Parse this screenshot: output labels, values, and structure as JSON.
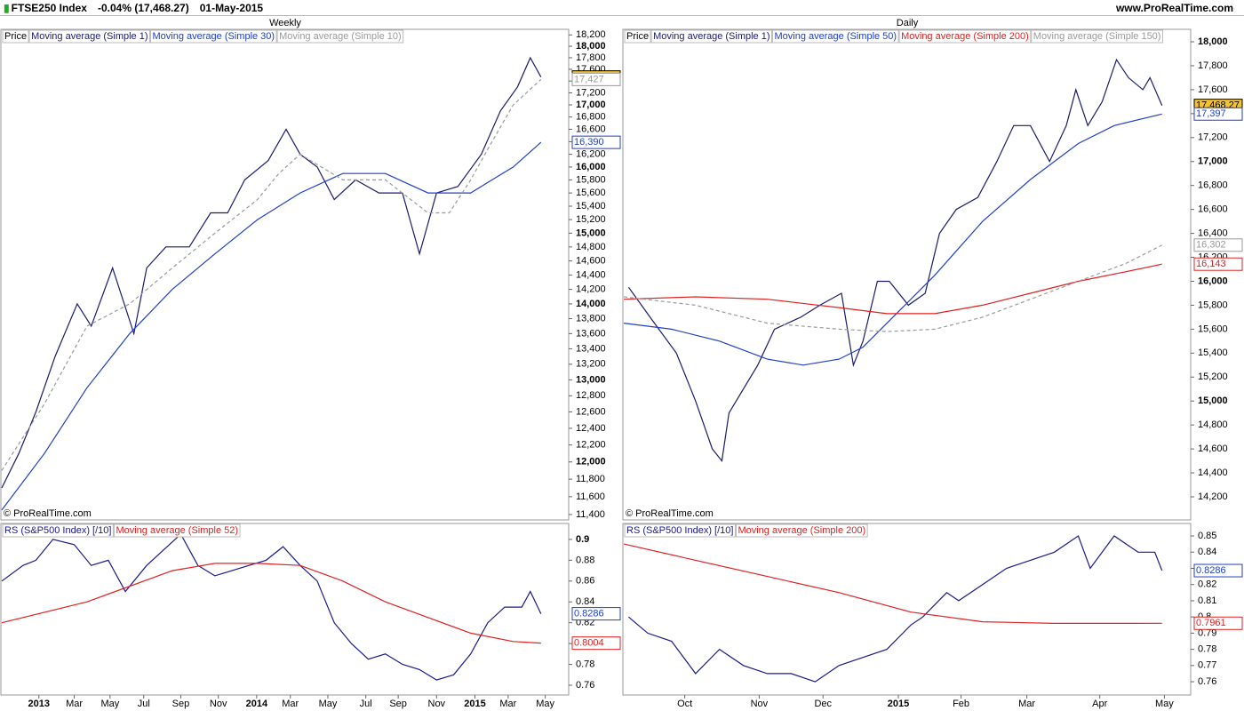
{
  "header": {
    "symbol": "FTSE250 Index",
    "change": "-0.04% (17,468.27)",
    "date": "01-May-2015",
    "site": "www.ProRealTime.com"
  },
  "chart_data": [
    {
      "type": "line",
      "title": "Weekly",
      "log": true,
      "price_label": "Price",
      "annotation": "© ProRealTime.com",
      "xlim": [
        0,
        133
      ],
      "ylim": [
        11340,
        18300
      ],
      "yticks": [
        {
          "value": 11400,
          "label": "11,400"
        },
        {
          "value": 11600,
          "label": "11,600"
        },
        {
          "value": 11800,
          "label": "11,800"
        },
        {
          "value": 12000,
          "label": "12,000"
        },
        {
          "value": 12200,
          "label": "12,200"
        },
        {
          "value": 12400,
          "label": "12,400"
        },
        {
          "value": 12600,
          "label": "12,600"
        },
        {
          "value": 12800,
          "label": "12,800"
        },
        {
          "value": 13000,
          "label": "13,000"
        },
        {
          "value": 13200,
          "label": "13,200"
        },
        {
          "value": 13400,
          "label": "13,400"
        },
        {
          "value": 13600,
          "label": "13,600"
        },
        {
          "value": 13800,
          "label": "13,800"
        },
        {
          "value": 14000,
          "label": "14,000"
        },
        {
          "value": 14200,
          "label": "14,200"
        },
        {
          "value": 14400,
          "label": "14,400"
        },
        {
          "value": 14600,
          "label": "14,600"
        },
        {
          "value": 14800,
          "label": "14,800"
        },
        {
          "value": 15000,
          "label": "15,000"
        },
        {
          "value": 15200,
          "label": "15,200"
        },
        {
          "value": 15400,
          "label": "15,400"
        },
        {
          "value": 15600,
          "label": "15,600"
        },
        {
          "value": 15800,
          "label": "15,800"
        },
        {
          "value": 16000,
          "label": "16,000"
        },
        {
          "value": 16200,
          "label": "16,200"
        },
        {
          "value": 16400,
          "label": "16,400"
        },
        {
          "value": 16600,
          "label": "16,600"
        },
        {
          "value": 16800,
          "label": "16,800"
        },
        {
          "value": 17000,
          "label": "17,000"
        },
        {
          "value": 17200,
          "label": "17,200"
        },
        {
          "value": 17400,
          "label": "17,400"
        },
        {
          "value": 17600,
          "label": "17,600"
        },
        {
          "value": 17800,
          "label": "17,800"
        },
        {
          "value": 18000,
          "label": "18,000"
        },
        {
          "value": 18200,
          "label": "18,200"
        }
      ],
      "series": [
        {
          "name": "Moving average (Simple 1)",
          "color": "#1a1a6e",
          "x": [
            0,
            4,
            8,
            12.5,
            17.7,
            21,
            26,
            31,
            34,
            38.5,
            44,
            49,
            53,
            57,
            62.5,
            66.7,
            70,
            74,
            78,
            83,
            88.5,
            94,
            98,
            102,
            107,
            112.5,
            117,
            121,
            124,
            126.5
          ],
          "values": [
            11700,
            12100,
            12600,
            13300,
            14000,
            13700,
            14500,
            13600,
            14500,
            14800,
            14800,
            15300,
            15300,
            15800,
            16100,
            16600,
            16200,
            16000,
            15500,
            15800,
            15600,
            15600,
            14700,
            15600,
            15700,
            16200,
            16900,
            17300,
            17800,
            17468.27
          ]
        },
        {
          "name": "Moving average (Simple 30)",
          "color": "#2040c8",
          "x": [
            0,
            10,
            20,
            30,
            40,
            50,
            60,
            70,
            80,
            90,
            100,
            110,
            115,
            120,
            126.5
          ],
          "values": [
            11450,
            12100,
            12900,
            13600,
            14200,
            14700,
            15200,
            15600,
            15900,
            15900,
            15600,
            15600,
            15800,
            16000,
            16390
          ]
        },
        {
          "name": "Moving average (Simple 10)",
          "color": "#9a9a9a",
          "dashed": true,
          "x": [
            0,
            10,
            20,
            30,
            40,
            50,
            60,
            65,
            70,
            80,
            90,
            100,
            105,
            110,
            115,
            120,
            126.5
          ],
          "values": [
            11900,
            12700,
            13700,
            14000,
            14500,
            15000,
            15500,
            15900,
            16200,
            15800,
            15800,
            15300,
            15300,
            15800,
            16400,
            17000,
            17427
          ]
        }
      ],
      "markers": [
        {
          "value": 17468.27,
          "label": "17,468.27",
          "color": "#000",
          "bg": "#f2c230"
        },
        {
          "value": 17427,
          "label": "17,427",
          "color": "#999",
          "bg": "#fff"
        },
        {
          "value": 16390,
          "label": "16,390",
          "color": "#2040c8",
          "bg": "#fff"
        }
      ]
    },
    {
      "type": "line",
      "xlim": [
        0,
        133
      ],
      "ylim": [
        0.7506,
        0.9153
      ],
      "yticks": [
        0.76,
        0.78,
        0.8,
        0.82,
        0.84,
        0.86,
        0.88,
        0.9
      ],
      "xticks": [
        {
          "value": 8.7,
          "label": "2013"
        },
        {
          "value": 17,
          "label": "Mar"
        },
        {
          "value": 25.4,
          "label": "May"
        },
        {
          "value": 33.3,
          "label": "Jul"
        },
        {
          "value": 42,
          "label": "Sep"
        },
        {
          "value": 50.8,
          "label": "Nov"
        },
        {
          "value": 59.8,
          "label": "2014"
        },
        {
          "value": 67.7,
          "label": "Mar"
        },
        {
          "value": 76.5,
          "label": "May"
        },
        {
          "value": 85.4,
          "label": "Jul"
        },
        {
          "value": 93,
          "label": "Sep"
        },
        {
          "value": 102,
          "label": "Nov"
        },
        {
          "value": 111,
          "label": "2015"
        },
        {
          "value": 118.8,
          "label": "Mar"
        },
        {
          "value": 127.5,
          "label": "May"
        }
      ],
      "series": [
        {
          "name": "RS (S&P500 Index) [/10]",
          "color": "#1a1a8e",
          "x": [
            0,
            5,
            8,
            12,
            17,
            21,
            25,
            29,
            34,
            38,
            42,
            46,
            50,
            54,
            58,
            62,
            66,
            70,
            74,
            78,
            82,
            86,
            90,
            94,
            98,
            102,
            106,
            110,
            114,
            118,
            122,
            124,
            126.5
          ],
          "values": [
            0.86,
            0.875,
            0.88,
            0.9,
            0.895,
            0.875,
            0.88,
            0.85,
            0.875,
            0.89,
            0.905,
            0.875,
            0.865,
            0.87,
            0.875,
            0.88,
            0.893,
            0.875,
            0.86,
            0.82,
            0.8,
            0.785,
            0.79,
            0.78,
            0.775,
            0.765,
            0.77,
            0.79,
            0.82,
            0.835,
            0.835,
            0.85,
            0.8286
          ]
        },
        {
          "name": "Moving average (Simple 52)",
          "color": "#e02020",
          "x": [
            0,
            20,
            40,
            50,
            60,
            70,
            80,
            90,
            100,
            110,
            120,
            126.5
          ],
          "values": [
            0.82,
            0.84,
            0.87,
            0.877,
            0.877,
            0.875,
            0.86,
            0.84,
            0.825,
            0.81,
            0.802,
            0.8004
          ]
        }
      ],
      "markers": [
        {
          "value": 0.8286,
          "label": "0.8286",
          "color": "#2040c8",
          "bg": "#fff"
        },
        {
          "value": 0.8004,
          "label": "0.8004",
          "color": "#e02020",
          "bg": "#fff"
        }
      ]
    },
    {
      "type": "line",
      "title": "Daily",
      "log": false,
      "price_label": "Price",
      "annotation": "© ProRealTime.com",
      "xlim": [
        0,
        237
      ],
      "ylim": [
        14007,
        18104
      ],
      "yticks": [
        {
          "value": 14200,
          "label": "14,200"
        },
        {
          "value": 14400,
          "label": "14,400"
        },
        {
          "value": 14600,
          "label": "14,600"
        },
        {
          "value": 14800,
          "label": "14,800"
        },
        {
          "value": 15000,
          "label": "15,000"
        },
        {
          "value": 15200,
          "label": "15,200"
        },
        {
          "value": 15400,
          "label": "15,400"
        },
        {
          "value": 15600,
          "label": "15,600"
        },
        {
          "value": 15800,
          "label": "15,800"
        },
        {
          "value": 16000,
          "label": "16,000"
        },
        {
          "value": 16200,
          "label": "16,200"
        },
        {
          "value": 16400,
          "label": "16,400"
        },
        {
          "value": 16600,
          "label": "16,600"
        },
        {
          "value": 16800,
          "label": "16,800"
        },
        {
          "value": 17000,
          "label": "17,000"
        },
        {
          "value": 17200,
          "label": "17,200"
        },
        {
          "value": 17400,
          "label": "17,400"
        },
        {
          "value": 17600,
          "label": "17,600"
        },
        {
          "value": 17800,
          "label": "17,800"
        },
        {
          "value": 18000,
          "label": "18,000"
        }
      ],
      "series": [
        {
          "name": "Moving average (Simple 1)",
          "color": "#1a1a6e",
          "x": [
            2,
            11,
            22,
            30,
            37,
            41,
            44,
            50,
            56,
            63,
            74,
            82,
            91,
            96,
            100,
            106,
            111,
            119,
            126,
            132,
            139,
            148,
            156,
            163,
            170,
            178,
            185,
            189,
            194,
            200,
            206,
            211,
            217,
            220,
            225
          ],
          "values": [
            15950,
            15700,
            15400,
            15000,
            14600,
            14500,
            14900,
            15100,
            15300,
            15600,
            15700,
            15800,
            15900,
            15300,
            15500,
            16000,
            16000,
            15800,
            15900,
            16400,
            16600,
            16700,
            17000,
            17300,
            17300,
            17000,
            17300,
            17600,
            17300,
            17500,
            17850,
            17700,
            17600,
            17700,
            17468.27
          ]
        },
        {
          "name": "Moving average (Simple 50)",
          "color": "#2040c8",
          "x": [
            0,
            20,
            40,
            60,
            75,
            90,
            100,
            115,
            130,
            150,
            170,
            190,
            205,
            225
          ],
          "values": [
            15650,
            15600,
            15500,
            15350,
            15300,
            15350,
            15450,
            15750,
            16050,
            16500,
            16850,
            17150,
            17300,
            17397
          ]
        },
        {
          "name": "Moving average (Simple 200)",
          "color": "#e02020",
          "x": [
            0,
            30,
            60,
            90,
            110,
            130,
            150,
            170,
            190,
            210,
            225
          ],
          "values": [
            15850,
            15870,
            15850,
            15780,
            15730,
            15730,
            15800,
            15900,
            16000,
            16080,
            16143
          ]
        },
        {
          "name": "Moving average (Simple 150)",
          "color": "#9a9a9a",
          "dashed": true,
          "x": [
            0,
            30,
            60,
            90,
            110,
            130,
            150,
            170,
            190,
            210,
            225
          ],
          "values": [
            15870,
            15800,
            15650,
            15600,
            15580,
            15600,
            15700,
            15850,
            16000,
            16150,
            16302
          ]
        }
      ],
      "markers": [
        {
          "value": 17468.27,
          "label": "17,468.27",
          "color": "#000",
          "bg": "#f2c230"
        },
        {
          "value": 17397,
          "label": "17,397",
          "color": "#2040c8",
          "bg": "#fff"
        },
        {
          "value": 16302,
          "label": "16,302",
          "color": "#999",
          "bg": "#fff"
        },
        {
          "value": 16143,
          "label": "16,143",
          "color": "#e02020",
          "bg": "#fff"
        }
      ]
    },
    {
      "type": "line",
      "xlim": [
        0,
        237
      ],
      "ylim": [
        0.7518,
        0.8577
      ],
      "yticks": [
        0.76,
        0.77,
        0.78,
        0.79,
        0.8,
        0.81,
        0.82,
        0.83,
        0.84,
        0.85
      ],
      "xticks": [
        {
          "value": 25.5,
          "label": "Oct"
        },
        {
          "value": 56.6,
          "label": "Nov"
        },
        {
          "value": 83.3,
          "label": "Dec"
        },
        {
          "value": 114.8,
          "label": "2015"
        },
        {
          "value": 141,
          "label": "Feb"
        },
        {
          "value": 168.5,
          "label": "Mar"
        },
        {
          "value": 199,
          "label": "Apr"
        },
        {
          "value": 226,
          "label": "May"
        }
      ],
      "series": [
        {
          "name": "RS (S&P500 Index) [/10]",
          "color": "#1a1a8e",
          "x": [
            2,
            10,
            20,
            30,
            40,
            50,
            60,
            70,
            80,
            90,
            100,
            110,
            120,
            125,
            135,
            140,
            150,
            160,
            170,
            180,
            190,
            195,
            205,
            215,
            222,
            225
          ],
          "values": [
            0.8,
            0.79,
            0.785,
            0.765,
            0.78,
            0.77,
            0.765,
            0.765,
            0.76,
            0.77,
            0.775,
            0.78,
            0.795,
            0.8,
            0.815,
            0.81,
            0.82,
            0.83,
            0.835,
            0.84,
            0.85,
            0.83,
            0.85,
            0.84,
            0.84,
            0.8286
          ]
        },
        {
          "name": "Moving average (Simple 200)",
          "color": "#e02020",
          "x": [
            0,
            30,
            60,
            90,
            120,
            150,
            180,
            200,
            225
          ],
          "values": [
            0.845,
            0.835,
            0.825,
            0.815,
            0.803,
            0.797,
            0.796,
            0.796,
            0.7961
          ]
        }
      ],
      "markers": [
        {
          "value": 0.8286,
          "label": "0.8286",
          "color": "#2040c8",
          "bg": "#fff"
        },
        {
          "value": 0.7961,
          "label": "0.7961",
          "color": "#e02020",
          "bg": "#fff"
        }
      ]
    }
  ]
}
